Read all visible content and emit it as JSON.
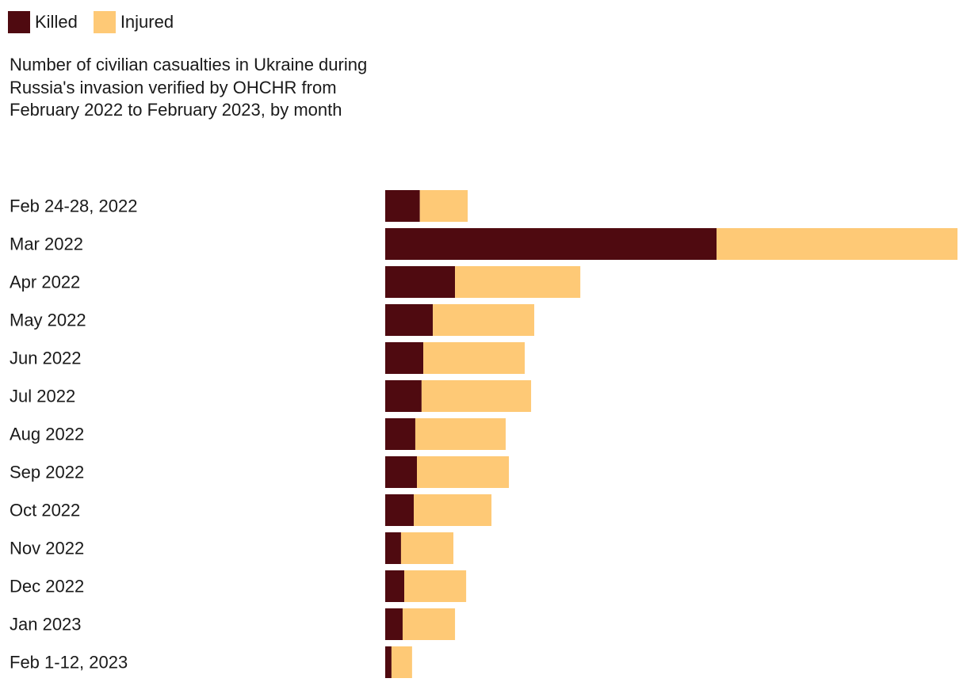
{
  "legend": {
    "killed_label": "Killed",
    "injured_label": "Injured"
  },
  "title": "Number of civilian casualties in Ukraine during Russia's invasion verified by OHCHR from February 2022 to February 2023, by month",
  "colors": {
    "killed": "#4f0a10",
    "injured": "#fec976"
  },
  "chart_data": {
    "type": "bar",
    "orientation": "horizontal",
    "stacked": true,
    "title": "Number of civilian casualties in Ukraine during Russia's invasion verified by OHCHR from February 2022 to February 2023, by month",
    "xlabel": "",
    "ylabel": "",
    "xlim": [
      0,
      6010
    ],
    "legend_position": "top-left",
    "categories": [
      "Feb 24-28, 2022",
      "Mar 2022",
      "Apr 2022",
      "May 2022",
      "Jun 2022",
      "Jul 2022",
      "Aug 2022",
      "Sep 2022",
      "Oct 2022",
      "Nov 2022",
      "Dec 2022",
      "Jan 2023",
      "Feb 1-12, 2023"
    ],
    "series": [
      {
        "name": "Killed",
        "values": [
          364,
          3480,
          733,
          500,
          400,
          382,
          316,
          333,
          300,
          166,
          200,
          183,
          66
        ]
      },
      {
        "name": "Injured",
        "values": [
          502,
          2530,
          1316,
          1065,
          1065,
          1150,
          949,
          966,
          816,
          550,
          650,
          550,
          216
        ]
      }
    ]
  }
}
